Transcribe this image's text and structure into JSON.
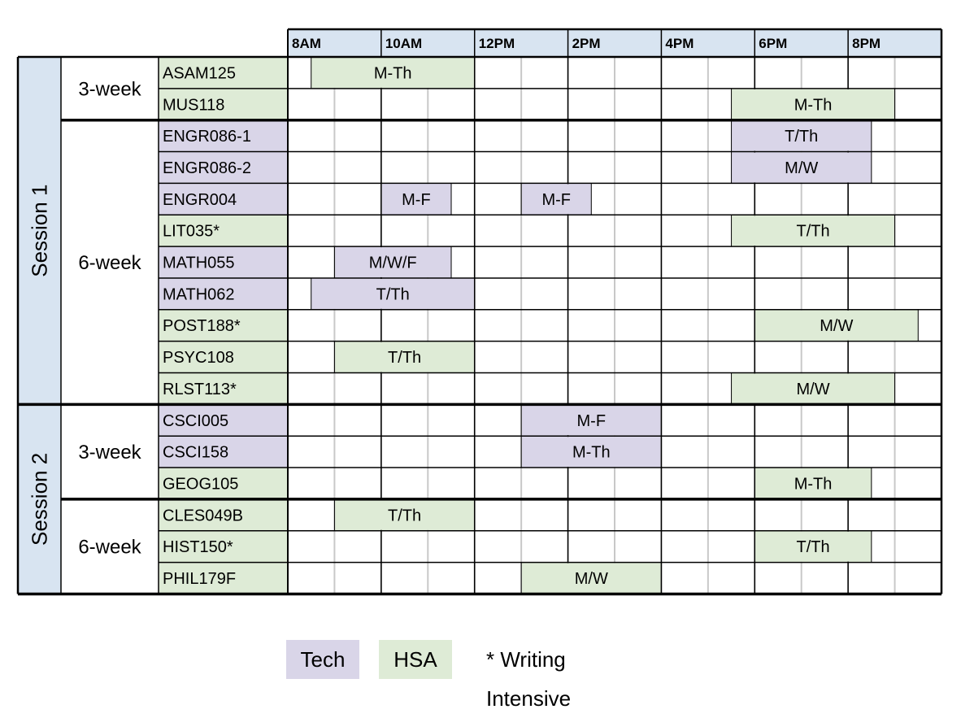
{
  "colors": {
    "tech": "#d9d5e8",
    "hsa": "#deebd6",
    "session": "#d8e4f1",
    "header": "#d8e4f1",
    "grid": "#c8c8c8",
    "line": "#000000"
  },
  "time_labels": [
    "8AM",
    "10AM",
    "12PM",
    "2PM",
    "4PM",
    "6PM",
    "8PM"
  ],
  "sessions": [
    {
      "label": "Session 1",
      "groups": [
        {
          "label": "3-week",
          "courses": [
            {
              "code": "ASAM125",
              "type": "hsa",
              "bars": [
                {
                  "start": 8.5,
                  "end": 12,
                  "label": "M-Th"
                }
              ]
            },
            {
              "code": "MUS118",
              "type": "hsa",
              "bars": [
                {
                  "start": 17.5,
                  "end": 21,
                  "label": "M-Th"
                }
              ]
            }
          ]
        },
        {
          "label": "6-week",
          "courses": [
            {
              "code": "ENGR086-1",
              "type": "tech",
              "bars": [
                {
                  "start": 17.5,
                  "end": 20.5,
                  "label": "T/Th"
                }
              ]
            },
            {
              "code": "ENGR086-2",
              "type": "tech",
              "bars": [
                {
                  "start": 17.5,
                  "end": 20.5,
                  "label": "M/W"
                }
              ]
            },
            {
              "code": "ENGR004",
              "type": "tech",
              "bars": [
                {
                  "start": 10,
                  "end": 11.5,
                  "label": "M-F"
                },
                {
                  "start": 13,
                  "end": 14.5,
                  "label": "M-F"
                }
              ]
            },
            {
              "code": "LIT035*",
              "type": "hsa",
              "bars": [
                {
                  "start": 17.5,
                  "end": 21,
                  "label": "T/Th"
                }
              ]
            },
            {
              "code": "MATH055",
              "type": "tech",
              "bars": [
                {
                  "start": 9,
                  "end": 11.5,
                  "label": "M/W/F"
                }
              ]
            },
            {
              "code": "MATH062",
              "type": "tech",
              "bars": [
                {
                  "start": 8.5,
                  "end": 12,
                  "label": "T/Th"
                }
              ]
            },
            {
              "code": "POST188*",
              "type": "hsa",
              "bars": [
                {
                  "start": 18,
                  "end": 21.5,
                  "label": "M/W"
                }
              ]
            },
            {
              "code": "PSYC108",
              "type": "hsa",
              "bars": [
                {
                  "start": 9,
                  "end": 12,
                  "label": "T/Th"
                }
              ]
            },
            {
              "code": "RLST113*",
              "type": "hsa",
              "bars": [
                {
                  "start": 17.5,
                  "end": 21,
                  "label": "M/W"
                }
              ]
            }
          ]
        }
      ]
    },
    {
      "label": "Session 2",
      "groups": [
        {
          "label": "3-week",
          "courses": [
            {
              "code": "CSCI005",
              "type": "tech",
              "bars": [
                {
                  "start": 13,
                  "end": 16,
                  "label": "M-F"
                }
              ]
            },
            {
              "code": "CSCI158",
              "type": "tech",
              "bars": [
                {
                  "start": 13,
                  "end": 16,
                  "label": "M-Th"
                }
              ]
            },
            {
              "code": "GEOG105",
              "type": "hsa",
              "bars": [
                {
                  "start": 18,
                  "end": 20.5,
                  "label": "M-Th"
                }
              ]
            }
          ]
        },
        {
          "label": "6-week",
          "courses": [
            {
              "code": "CLES049B",
              "type": "hsa",
              "bars": [
                {
                  "start": 9,
                  "end": 12,
                  "label": "T/Th"
                }
              ]
            },
            {
              "code": "HIST150*",
              "type": "hsa",
              "bars": [
                {
                  "start": 18,
                  "end": 20.5,
                  "label": "T/Th"
                }
              ]
            },
            {
              "code": "PHIL179F",
              "type": "hsa",
              "bars": [
                {
                  "start": 13,
                  "end": 16,
                  "label": "M/W"
                }
              ]
            }
          ]
        }
      ]
    }
  ],
  "legend": {
    "tech": "Tech",
    "hsa": "HSA",
    "note": "* Writing Intensive"
  }
}
